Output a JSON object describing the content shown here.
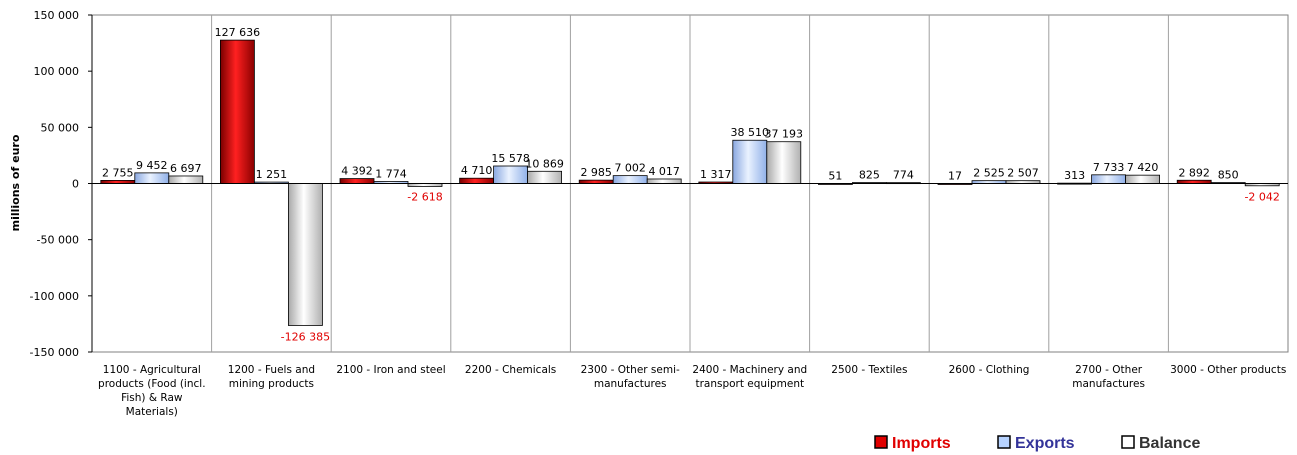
{
  "chart_data": {
    "type": "bar",
    "ylabel": "millions of euro",
    "ylim": [
      -150000,
      150000
    ],
    "yticks": [
      150000,
      100000,
      50000,
      0,
      -50000,
      -100000,
      -150000
    ],
    "ytick_labels": [
      "150 000",
      "100 000",
      "50 000",
      "0",
      "-50 000",
      "-100 000",
      "-150 000"
    ],
    "grid": "vertical category separators",
    "legend_position": "bottom-right",
    "categories": [
      [
        "1100 - Agricultural",
        "products (Food (incl.",
        "Fish) & Raw",
        "Materials)"
      ],
      [
        "1200 - Fuels and",
        "mining products"
      ],
      [
        "2100 - Iron and steel"
      ],
      [
        "2200 - Chemicals"
      ],
      [
        "2300 - Other semi-",
        "manufactures"
      ],
      [
        "2400 - Machinery and",
        "transport equipment"
      ],
      [
        "2500 - Textiles"
      ],
      [
        "2600 - Clothing"
      ],
      [
        "2700 - Other",
        "manufactures"
      ],
      [
        "3000 - Other products"
      ]
    ],
    "series": [
      {
        "name": "Imports",
        "color": "#dd0000",
        "values": [
          2755,
          127636,
          4392,
          4710,
          2985,
          1317,
          51,
          17,
          313,
          2892
        ],
        "labels": [
          "2 755",
          "127 636",
          "4 392",
          "4 710",
          "2 985",
          "1 317",
          "51",
          "17",
          "313",
          "2 892"
        ]
      },
      {
        "name": "Exports",
        "color": "#b7d3ff",
        "values": [
          9452,
          1251,
          1774,
          15578,
          7002,
          38510,
          825,
          2525,
          7733,
          850
        ],
        "labels": [
          "9 452",
          "1 251",
          "1 774",
          "15 578",
          "7 002",
          "38 510",
          "825",
          "2 525",
          "7 733",
          "850"
        ]
      },
      {
        "name": "Balance",
        "color": "#e6e6e6",
        "values": [
          6697,
          -126385,
          -2618,
          10869,
          4017,
          37193,
          774,
          2507,
          7420,
          -2042
        ],
        "labels": [
          "6 697",
          "-126 385",
          "-2 618",
          "10 869",
          "4 017",
          "37 193",
          "774",
          "2 507",
          "7 420",
          "-2 042"
        ]
      }
    ],
    "legend_colors": {
      "Imports": "#e00000",
      "Exports": "#333399",
      "Balance": "#333333"
    }
  }
}
